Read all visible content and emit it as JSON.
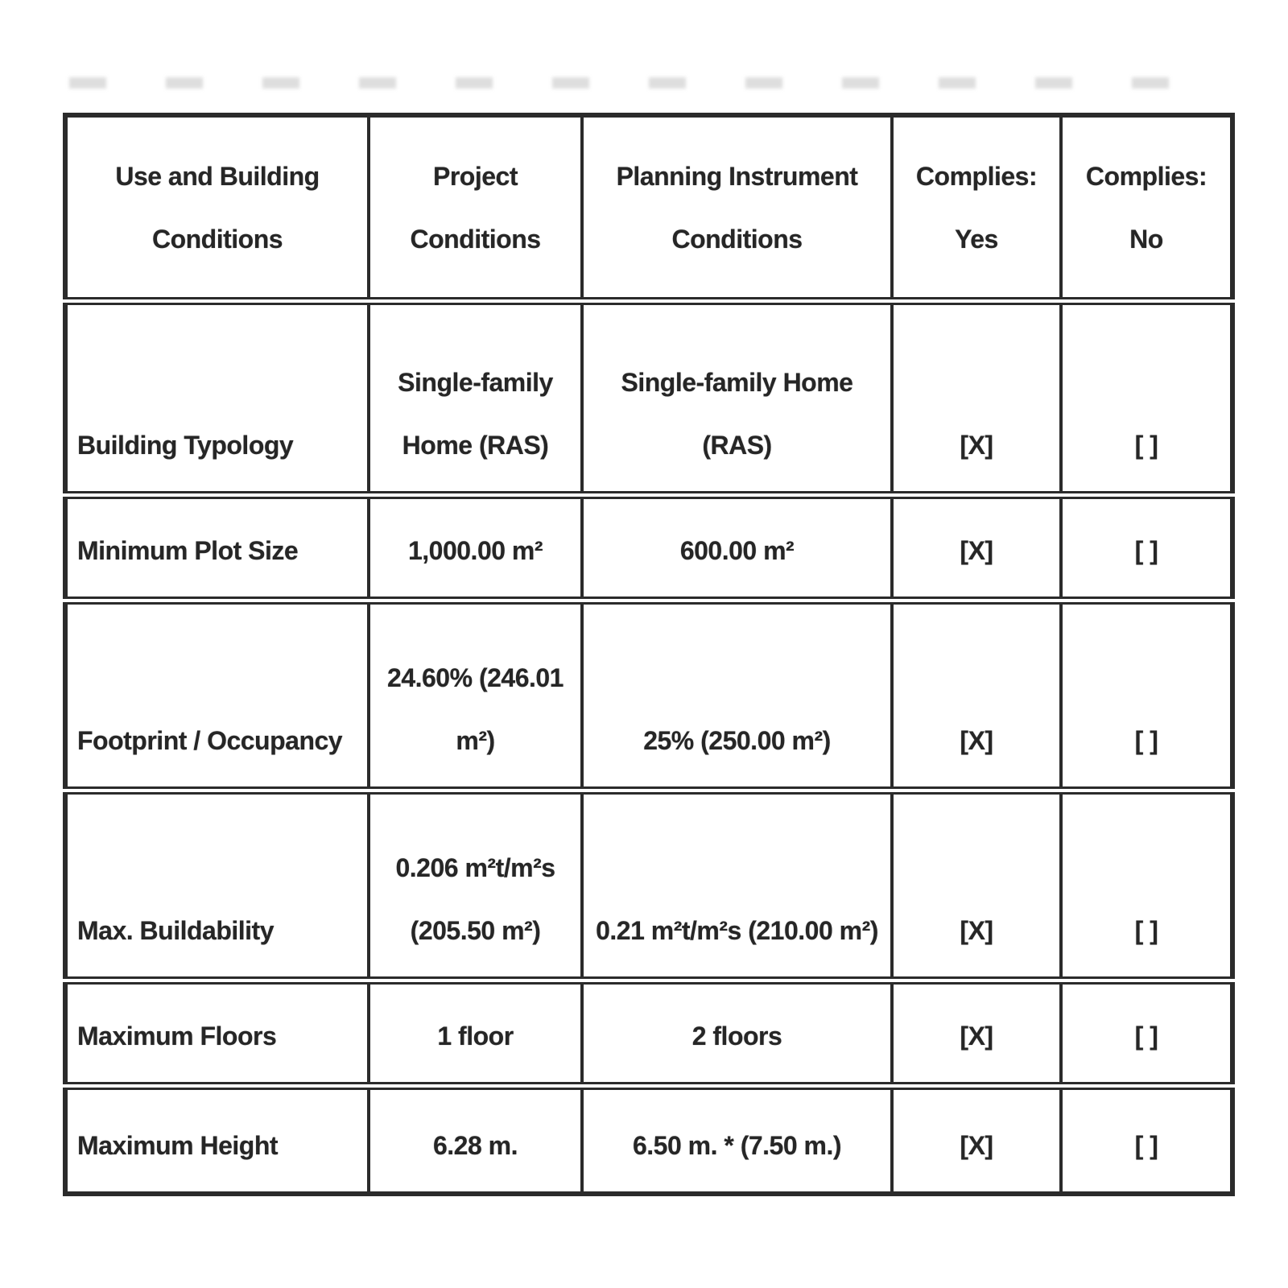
{
  "page": {
    "background": "#ffffff",
    "text_color": "#262626",
    "border_color": "#2b2b2b"
  },
  "table": {
    "columns": [
      "Use and Building Conditions",
      "Project Conditions",
      "Planning Instrument Conditions",
      "Complies: Yes",
      "Complies: No"
    ],
    "rows": [
      {
        "condition": "Building Typology",
        "project": "Single-family Home (RAS)",
        "planning": "Single-family Home (RAS)",
        "complies_yes": "[X]",
        "complies_no": "[ ]"
      },
      {
        "condition": "Minimum Plot Size",
        "project": "1,000.00 m²",
        "planning": "600.00 m²",
        "complies_yes": "[X]",
        "complies_no": "[ ]"
      },
      {
        "condition": "Footprint / Occupancy",
        "project": "24.60% (246.01 m²)",
        "planning": "25% (250.00 m²)",
        "complies_yes": "[X]",
        "complies_no": "[ ]"
      },
      {
        "condition": "Max. Buildability",
        "project": "0.206 m²t/m²s (205.50 m²)",
        "planning": "0.21 m²t/m²s (210.00 m²)",
        "complies_yes": "[X]",
        "complies_no": "[ ]"
      },
      {
        "condition": "Maximum Floors",
        "project": "1 floor",
        "planning": "2 floors",
        "complies_yes": "[X]",
        "complies_no": "[ ]"
      },
      {
        "condition": "Maximum Height",
        "project": "6.28 m.",
        "planning": "6.50 m. * (7.50 m.)",
        "complies_yes": "[X]",
        "complies_no": "[ ]"
      }
    ]
  }
}
